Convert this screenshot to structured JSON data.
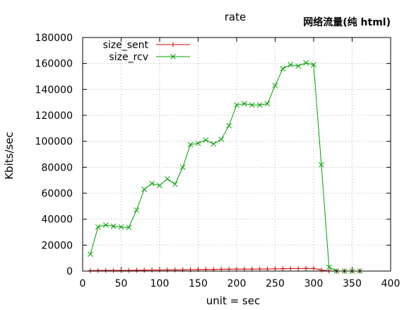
{
  "chart_data": {
    "type": "line",
    "title": "rate",
    "corner_label": "网络流量(纯 html)",
    "xlabel": "unit = sec",
    "ylabel": "Kbits/sec",
    "xlim": [
      0,
      400
    ],
    "ylim": [
      0,
      180000
    ],
    "x_ticks": [
      "0",
      "50",
      "100",
      "150",
      "200",
      "250",
      "300",
      "350",
      "400"
    ],
    "y_ticks": [
      "0",
      "20000",
      "40000",
      "60000",
      "80000",
      "100000",
      "120000",
      "140000",
      "160000",
      "180000"
    ],
    "grid": true,
    "legend_position": "top-left",
    "x": [
      10,
      20,
      30,
      40,
      50,
      60,
      70,
      80,
      90,
      100,
      110,
      120,
      130,
      140,
      150,
      160,
      170,
      180,
      190,
      200,
      210,
      220,
      230,
      240,
      250,
      260,
      270,
      280,
      290,
      300,
      310,
      320,
      330,
      340,
      350,
      360
    ],
    "series": [
      {
        "name": "size_sent",
        "color": "#cc0000",
        "marker": "plus",
        "values": [
          300,
          400,
          500,
          500,
          500,
          500,
          600,
          700,
          800,
          800,
          900,
          900,
          1000,
          1100,
          1200,
          1300,
          1200,
          1400,
          1400,
          1500,
          1500,
          1500,
          1600,
          1600,
          1700,
          1800,
          1900,
          1900,
          2000,
          2000,
          800,
          100,
          0,
          0,
          0,
          0
        ]
      },
      {
        "name": "size_rcv",
        "color": "#00a000",
        "marker": "cross",
        "values": [
          13000,
          34000,
          35500,
          34500,
          34000,
          33500,
          47000,
          63000,
          67500,
          66000,
          71000,
          67000,
          80000,
          97500,
          98500,
          101000,
          98000,
          101500,
          112000,
          128000,
          129000,
          128000,
          128000,
          129000,
          143000,
          156000,
          159000,
          158000,
          160500,
          159000,
          82000,
          3000,
          0,
          0,
          0,
          0
        ]
      }
    ]
  }
}
